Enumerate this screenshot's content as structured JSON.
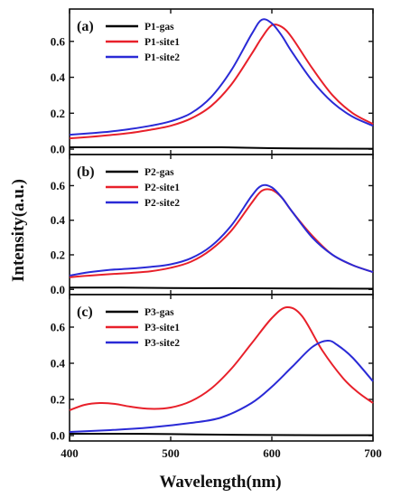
{
  "chart_data": [
    {
      "type": "line",
      "panel_label": "(a)",
      "xlim": [
        400,
        700
      ],
      "ylim": [
        -0.03,
        0.78
      ],
      "yticks": [
        0.0,
        0.2,
        0.4,
        0.6
      ],
      "legend_position": "top-left",
      "series": [
        {
          "name": "P1-gas",
          "color": "#000000",
          "x": [
            400,
            450,
            500,
            550,
            600,
            650,
            700
          ],
          "y": [
            0.01,
            0.01,
            0.01,
            0.01,
            0.005,
            0.003,
            0.002
          ]
        },
        {
          "name": "P1-site1",
          "color": "#e8202a",
          "x": [
            400,
            420,
            440,
            460,
            480,
            500,
            520,
            540,
            560,
            580,
            590,
            600,
            610,
            620,
            640,
            660,
            680,
            700
          ],
          "y": [
            0.06,
            0.068,
            0.078,
            0.09,
            0.108,
            0.13,
            0.17,
            0.24,
            0.36,
            0.53,
            0.62,
            0.69,
            0.68,
            0.62,
            0.45,
            0.3,
            0.2,
            0.14
          ]
        },
        {
          "name": "P1-site2",
          "color": "#2a2ad6",
          "x": [
            400,
            420,
            440,
            460,
            480,
            500,
            520,
            540,
            560,
            580,
            590,
            600,
            610,
            620,
            640,
            660,
            680,
            700
          ],
          "y": [
            0.08,
            0.088,
            0.098,
            0.112,
            0.13,
            0.155,
            0.2,
            0.29,
            0.44,
            0.64,
            0.72,
            0.7,
            0.63,
            0.54,
            0.38,
            0.26,
            0.18,
            0.13
          ]
        }
      ]
    },
    {
      "type": "line",
      "panel_label": "(b)",
      "xlim": [
        400,
        700
      ],
      "ylim": [
        -0.03,
        0.78
      ],
      "yticks": [
        0.0,
        0.2,
        0.4,
        0.6
      ],
      "legend_position": "top-left",
      "series": [
        {
          "name": "P2-gas",
          "color": "#000000",
          "x": [
            400,
            450,
            500,
            550,
            600,
            650,
            700
          ],
          "y": [
            0.01,
            0.01,
            0.008,
            0.007,
            0.006,
            0.005,
            0.004
          ]
        },
        {
          "name": "P2-site1",
          "color": "#e8202a",
          "x": [
            400,
            420,
            440,
            460,
            480,
            500,
            520,
            540,
            560,
            580,
            590,
            600,
            610,
            620,
            640,
            660,
            680,
            700
          ],
          "y": [
            0.07,
            0.08,
            0.088,
            0.095,
            0.105,
            0.125,
            0.16,
            0.23,
            0.34,
            0.5,
            0.57,
            0.575,
            0.53,
            0.45,
            0.31,
            0.2,
            0.14,
            0.1
          ]
        },
        {
          "name": "P2-site2",
          "color": "#2a2ad6",
          "x": [
            400,
            420,
            440,
            460,
            480,
            500,
            520,
            540,
            560,
            580,
            590,
            600,
            610,
            620,
            640,
            660,
            680,
            700
          ],
          "y": [
            0.08,
            0.1,
            0.113,
            0.12,
            0.13,
            0.145,
            0.18,
            0.25,
            0.37,
            0.54,
            0.6,
            0.59,
            0.53,
            0.45,
            0.3,
            0.2,
            0.14,
            0.1
          ]
        }
      ]
    },
    {
      "type": "line",
      "panel_label": "(c)",
      "xlim": [
        400,
        700
      ],
      "ylim": [
        -0.03,
        0.78
      ],
      "yticks": [
        0.0,
        0.2,
        0.4,
        0.6
      ],
      "xticks": [
        400,
        500,
        600,
        700
      ],
      "xlabel": "Wavelength(nm)",
      "legend_position": "top-left",
      "series": [
        {
          "name": "P3-gas",
          "color": "#000000",
          "x": [
            400,
            450,
            500,
            550,
            600,
            650,
            700
          ],
          "y": [
            0.01,
            0.01,
            0.008,
            0.005,
            0.003,
            0.002,
            0.002
          ]
        },
        {
          "name": "P3-site1",
          "color": "#e8202a",
          "x": [
            400,
            415,
            430,
            445,
            460,
            480,
            500,
            520,
            540,
            560,
            580,
            600,
            615,
            630,
            650,
            670,
            685,
            700
          ],
          "y": [
            0.14,
            0.17,
            0.18,
            0.175,
            0.16,
            0.148,
            0.155,
            0.19,
            0.26,
            0.37,
            0.51,
            0.65,
            0.71,
            0.66,
            0.47,
            0.32,
            0.24,
            0.18
          ]
        },
        {
          "name": "P3-site2",
          "color": "#2a2ad6",
          "x": [
            400,
            440,
            480,
            520,
            550,
            580,
            600,
            620,
            640,
            655,
            665,
            680,
            700
          ],
          "y": [
            0.02,
            0.03,
            0.045,
            0.07,
            0.1,
            0.18,
            0.27,
            0.38,
            0.49,
            0.525,
            0.5,
            0.43,
            0.3
          ]
        }
      ]
    }
  ],
  "ylabel": "Intensity(a.u.)"
}
